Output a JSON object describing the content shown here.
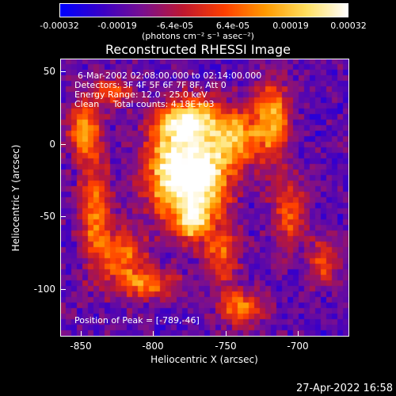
{
  "colorbar": {
    "tick_labels": [
      "-0.00032",
      "-0.00019",
      "-6.4e-05",
      "6.4e-05",
      "0.00019",
      "0.00032"
    ],
    "units": "(photons cm⁻² s⁻¹ asec⁻²)",
    "colors": [
      "#0000ff",
      "#3a00c8",
      "#7a1090",
      "#c01830",
      "#ff4000",
      "#ff9a00",
      "#ffe060",
      "#ffffff"
    ]
  },
  "plot": {
    "title": "Reconstructed RHESSI Image",
    "info_lines": [
      "6-Mar-2002 02:08:00.000 to 02:14:00.000",
      "Detectors: 3F 4F 5F 6F 7F 8F, Att 0",
      "Energy Range: 12.0 - 25.0 keV",
      "Clean     Total counts: 4.18E+03"
    ],
    "peak_text": "Position of Peak = [-789,-46]",
    "xlabel": "Heliocentric X (arcsec)",
    "ylabel": "Heliocentric Y (arcsec)",
    "x_ticks": [
      "-850",
      "-800",
      "-750",
      "-700"
    ],
    "y_ticks": [
      "50",
      "0",
      "-50",
      "-100"
    ]
  },
  "chart_data": {
    "type": "heatmap",
    "title": "Reconstructed RHESSI Image",
    "xlabel": "Heliocentric X (arcsec)",
    "ylabel": "Heliocentric Y (arcsec)",
    "xlim": [
      -865,
      -665
    ],
    "ylim": [
      -132,
      58
    ],
    "colorbar_range": [
      -0.00032,
      0.00032
    ],
    "peak": [
      -789,
      -46
    ]
  },
  "timestamp": "27-Apr-2022 16:58"
}
